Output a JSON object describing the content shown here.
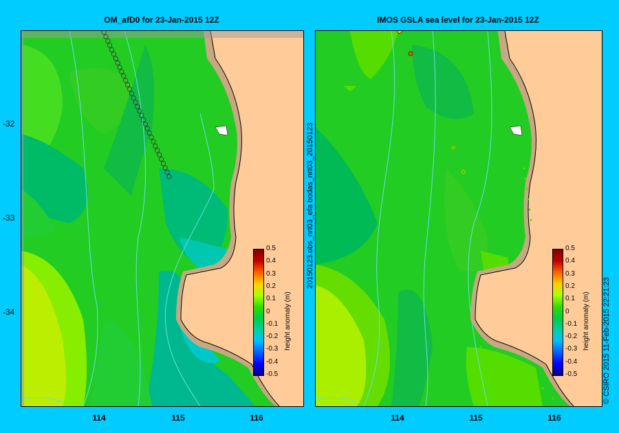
{
  "left_panel": {
    "title": "OM_afD0 for 23-Jan-2015 12Z",
    "y_ticks": [
      "-32",
      "-33",
      "-34"
    ],
    "x_ticks": [
      "114",
      "115",
      "116"
    ]
  },
  "right_panel": {
    "title": "IMOS GSLA sea level  for 23-Jan-2015 12Z",
    "x_ticks": [
      "114",
      "115",
      "116"
    ],
    "side_label": "20150123.obs_nrt03_efa    bodas_nrt03_20150123"
  },
  "colorbar": {
    "title": "height anomaly (m)",
    "labels": [
      "0.5",
      "0.4",
      "0.3",
      "0.2",
      "0.1",
      "0",
      "-0.1",
      "-0.2",
      "-0.3",
      "-0.4",
      "-0.5"
    ],
    "colors": [
      "#000080",
      "#0000ff",
      "#0060ff",
      "#00c0ff",
      "#00d0a0",
      "#00cc44",
      "#33dd00",
      "#aaff00",
      "#ffd000",
      "#ff6000",
      "#c00000",
      "#800000"
    ]
  },
  "copyright": "© CSIRO 2015   11-Feb-2015 22:21:23",
  "colors": {
    "background": "#00ccff",
    "land": "#ffcc99",
    "shelf": "#c8a882",
    "isobath": "#66e0e0"
  }
}
